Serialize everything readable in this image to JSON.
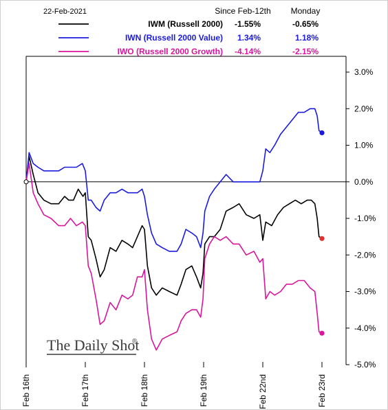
{
  "colors": {
    "iwm": "#000000",
    "iwn": "#1a1adf",
    "iwo": "#d9159b",
    "zero_line": "#000000"
  },
  "brand": "The Daily Shot",
  "brand_mark": "®",
  "chart_data": {
    "type": "line",
    "date": "22-Feb-2021",
    "table_headers": [
      "Since Feb-12th",
      "Monday"
    ],
    "legend_placement": "top-left",
    "x_tick_labels": [
      "Feb 16th",
      "Feb 17th",
      "Feb 18th",
      "Feb 19th",
      "Feb 22nd",
      "Feb 23rd"
    ],
    "x_range": [
      0,
      5
    ],
    "y_range": [
      -5.0,
      3.0
    ],
    "y_ticks": [
      3.0,
      2.0,
      1.0,
      0.0,
      -1.0,
      -2.0,
      -3.0,
      -4.0,
      -5.0
    ],
    "y_tick_labels": [
      "3.0%",
      "2.0%",
      "1.0%",
      "0.0%",
      "-1.0%",
      "-2.0%",
      "-3.0%",
      "-4.0%",
      "-5.0%"
    ],
    "y_axis_side": "right",
    "grid": false,
    "series": [
      {
        "name": "IWM (Russell 2000)",
        "key": "iwm",
        "since_feb12": "-1.55%",
        "monday": "-0.65%",
        "end_marker": true,
        "x": [
          0,
          0.05,
          0.12,
          0.2,
          0.3,
          0.42,
          0.55,
          0.65,
          0.72,
          0.8,
          0.88,
          0.96,
          1.0,
          1.05,
          1.1,
          1.18,
          1.25,
          1.32,
          1.42,
          1.52,
          1.62,
          1.72,
          1.8,
          1.88,
          1.96,
          2.0,
          2.05,
          2.12,
          2.2,
          2.3,
          2.42,
          2.55,
          2.62,
          2.7,
          2.8,
          2.88,
          2.95,
          2.99,
          3.02,
          3.1,
          3.18,
          3.28,
          3.38,
          3.5,
          3.6,
          3.72,
          3.85,
          3.95,
          4.0,
          4.05,
          4.15,
          4.25,
          4.35,
          4.45,
          4.55,
          4.65,
          4.75,
          4.82,
          4.88,
          4.92,
          4.95,
          5.0
        ],
        "y": [
          0.0,
          0.7,
          0.2,
          -0.3,
          -0.5,
          -0.6,
          -0.6,
          -0.4,
          -0.5,
          -0.5,
          -0.2,
          -0.4,
          -0.3,
          -1.5,
          -1.6,
          -2.1,
          -2.6,
          -2.4,
          -1.8,
          -1.9,
          -1.6,
          -1.7,
          -1.8,
          -1.5,
          -1.2,
          -1.3,
          -2.3,
          -2.9,
          -3.1,
          -2.9,
          -3.0,
          -3.1,
          -2.8,
          -2.4,
          -2.3,
          -2.6,
          -2.9,
          -2.5,
          -1.7,
          -1.5,
          -1.5,
          -1.3,
          -0.8,
          -0.7,
          -0.6,
          -0.9,
          -1.0,
          -0.9,
          -1.6,
          -1.1,
          -1.2,
          -0.9,
          -0.7,
          -0.6,
          -0.5,
          -0.6,
          -0.5,
          -0.5,
          -0.6,
          -1.0,
          -1.5,
          -1.55
        ]
      },
      {
        "name": "IWN (Russell 2000 Value)",
        "key": "iwn",
        "since_feb12": "1.34%",
        "monday": "1.18%",
        "end_marker": true,
        "x": [
          0,
          0.05,
          0.12,
          0.2,
          0.3,
          0.42,
          0.55,
          0.65,
          0.75,
          0.85,
          0.95,
          1.0,
          1.05,
          1.1,
          1.18,
          1.25,
          1.32,
          1.42,
          1.52,
          1.62,
          1.72,
          1.8,
          1.88,
          1.96,
          2.0,
          2.05,
          2.12,
          2.2,
          2.3,
          2.42,
          2.55,
          2.62,
          2.7,
          2.8,
          2.88,
          2.95,
          2.99,
          3.02,
          3.1,
          3.18,
          3.28,
          3.38,
          3.5,
          3.6,
          3.72,
          3.85,
          3.95,
          4.0,
          4.05,
          4.12,
          4.2,
          4.3,
          4.4,
          4.5,
          4.6,
          4.7,
          4.8,
          4.88,
          4.92,
          4.95,
          5.0
        ],
        "y": [
          0.0,
          0.8,
          0.5,
          0.4,
          0.3,
          0.3,
          0.3,
          0.4,
          0.4,
          0.4,
          0.5,
          0.3,
          -0.5,
          -0.5,
          -0.7,
          -0.8,
          -0.5,
          -0.3,
          -0.3,
          -0.2,
          -0.3,
          -0.3,
          -0.3,
          -0.2,
          -0.4,
          -0.9,
          -1.4,
          -1.7,
          -1.8,
          -1.9,
          -1.9,
          -1.7,
          -1.3,
          -1.4,
          -1.5,
          -1.8,
          -1.4,
          -0.8,
          -0.4,
          -0.2,
          0.0,
          0.2,
          0.0,
          0.0,
          0.0,
          0.0,
          0.0,
          0.3,
          0.9,
          0.8,
          1.0,
          1.3,
          1.5,
          1.7,
          1.9,
          1.9,
          2.0,
          2.0,
          1.8,
          1.4,
          1.34
        ]
      },
      {
        "name": "IWO (Russell 2000 Growth)",
        "key": "iwo",
        "since_feb12": "-4.14%",
        "monday": "-2.15%",
        "end_marker": true,
        "x": [
          0,
          0.05,
          0.12,
          0.2,
          0.3,
          0.42,
          0.55,
          0.65,
          0.75,
          0.85,
          0.95,
          1.0,
          1.05,
          1.1,
          1.18,
          1.25,
          1.32,
          1.42,
          1.52,
          1.62,
          1.72,
          1.8,
          1.88,
          1.96,
          2.0,
          2.05,
          2.12,
          2.2,
          2.3,
          2.42,
          2.55,
          2.62,
          2.7,
          2.8,
          2.88,
          2.95,
          2.99,
          3.02,
          3.1,
          3.18,
          3.28,
          3.38,
          3.5,
          3.6,
          3.72,
          3.85,
          3.95,
          4.0,
          4.05,
          4.12,
          4.2,
          4.3,
          4.4,
          4.5,
          4.6,
          4.7,
          4.8,
          4.88,
          4.92,
          4.95,
          5.0
        ],
        "y": [
          0.0,
          0.5,
          -0.3,
          -0.6,
          -0.9,
          -1.0,
          -1.2,
          -1.2,
          -1.0,
          -1.2,
          -1.1,
          -1.2,
          -2.3,
          -2.5,
          -3.2,
          -3.9,
          -3.8,
          -3.3,
          -3.5,
          -3.1,
          -3.2,
          -3.1,
          -2.6,
          -2.6,
          -2.4,
          -3.5,
          -4.3,
          -4.6,
          -4.3,
          -4.2,
          -4.1,
          -3.8,
          -3.6,
          -3.5,
          -3.5,
          -3.7,
          -3.2,
          -2.1,
          -1.7,
          -1.5,
          -1.6,
          -1.5,
          -1.7,
          -1.7,
          -2.0,
          -1.9,
          -2.2,
          -2.1,
          -3.2,
          -3.0,
          -3.1,
          -3.0,
          -2.8,
          -2.8,
          -2.7,
          -2.7,
          -2.9,
          -3.0,
          -3.6,
          -4.1,
          -4.14
        ]
      }
    ]
  }
}
